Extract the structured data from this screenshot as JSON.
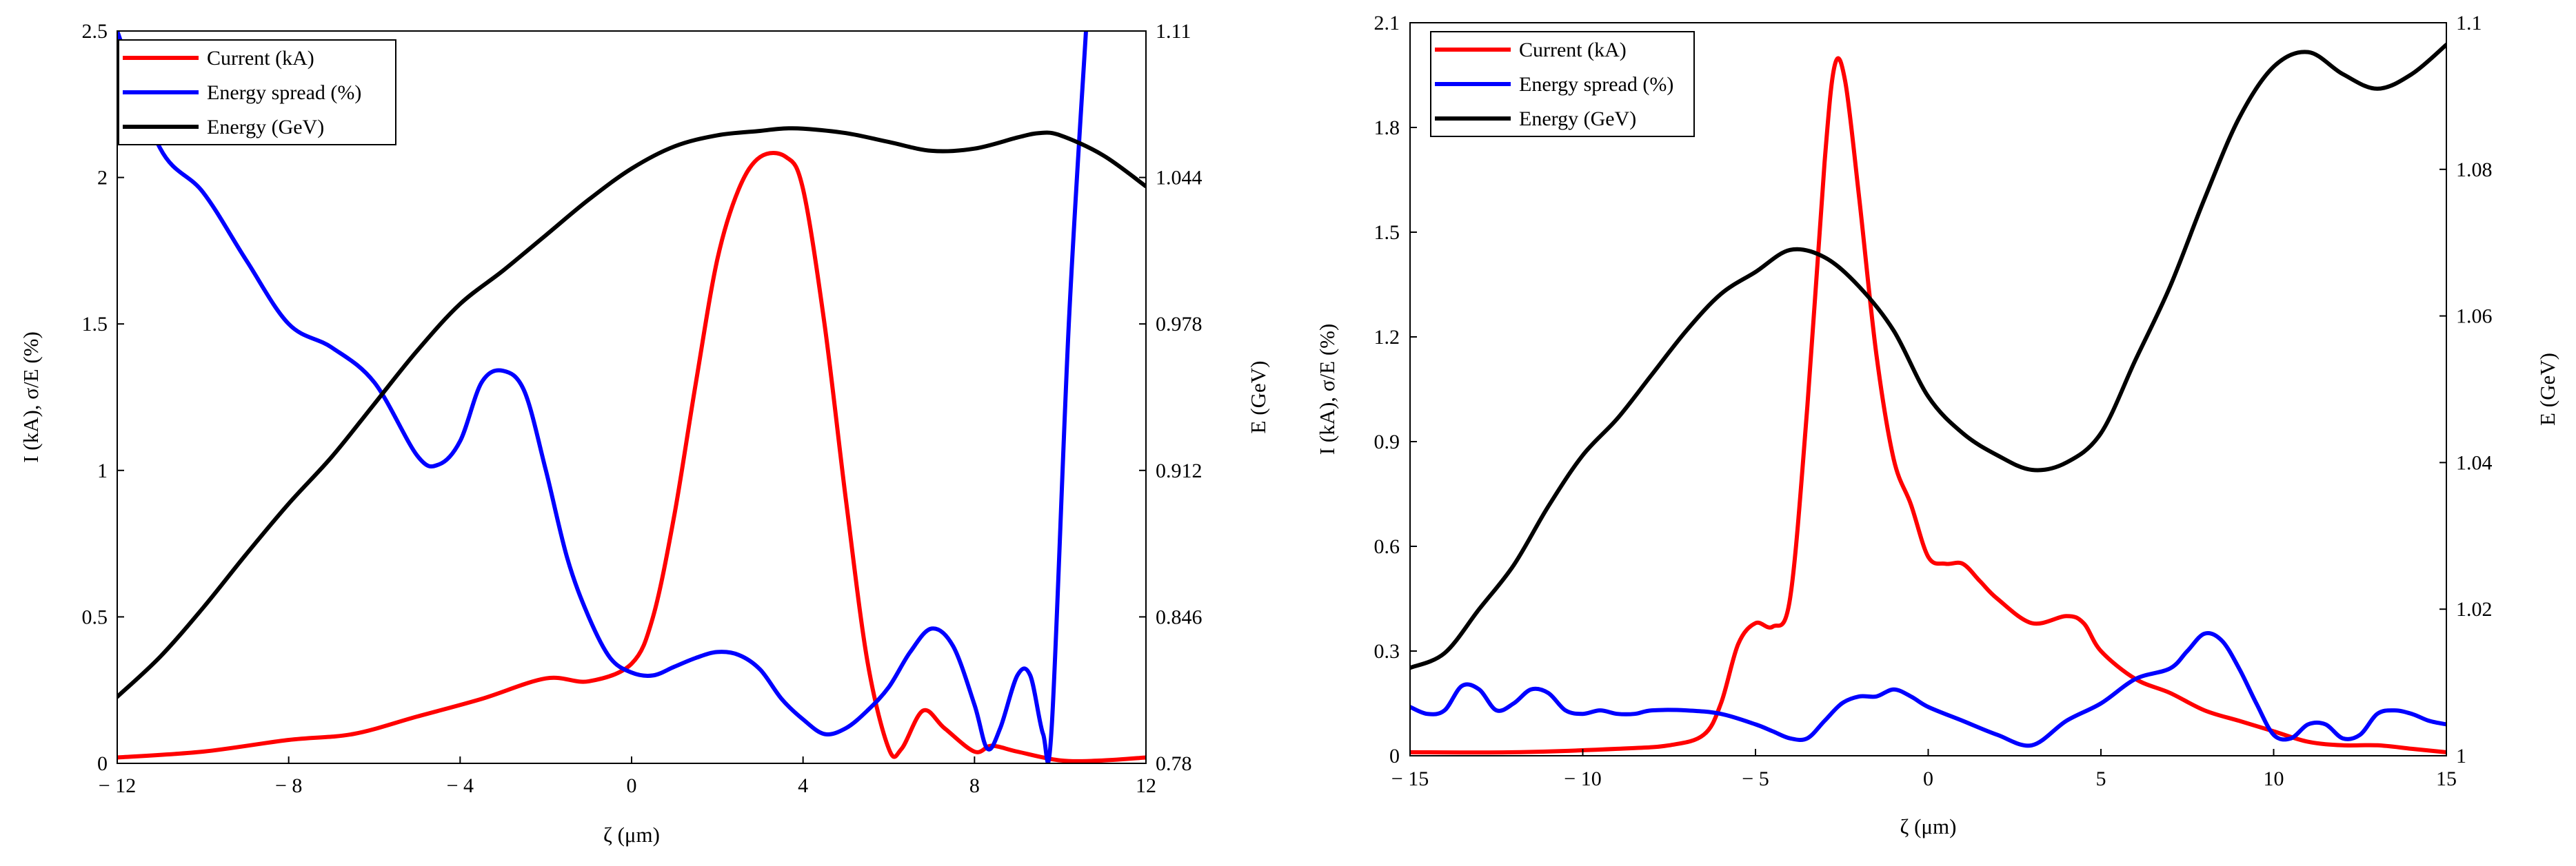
{
  "chart_data": [
    {
      "type": "line",
      "x_label": "ζ (μm)",
      "y_label": "I (kA), σ/E (%)",
      "y2_label": "E (GeV)",
      "xlim": [
        -12,
        12
      ],
      "ylim": [
        0,
        2.5
      ],
      "y2lim": [
        0.78,
        1.11
      ],
      "x_ticks": [
        "-12",
        "-8",
        "-4",
        "0",
        "4",
        "8",
        "12"
      ],
      "y_ticks": [
        "0",
        "0.5",
        "1",
        "1.5",
        "2",
        "2.5"
      ],
      "y2_ticks": [
        "0.78",
        "0.846",
        "0.912",
        "0.978",
        "1.044",
        "1.11"
      ],
      "legend": [
        {
          "name": "Current (kA)",
          "color": "#ff0000"
        },
        {
          "name": "Energy spread (%)",
          "color": "#0000ff"
        },
        {
          "name": "Energy (GeV)",
          "color": "#000000"
        }
      ],
      "series": [
        {
          "name": "Current (kA)",
          "color": "#ff0000",
          "axis": "left",
          "x": [
            -12,
            -10,
            -8,
            -6.5,
            -5,
            -3.5,
            -2,
            -1,
            0,
            0.5,
            1,
            1.5,
            2,
            2.5,
            3,
            3.6,
            4,
            4.5,
            5,
            5.5,
            6,
            6.3,
            6.8,
            7.3,
            8,
            8.4,
            9,
            10,
            11,
            12
          ],
          "y": [
            0.02,
            0.04,
            0.08,
            0.1,
            0.16,
            0.22,
            0.29,
            0.28,
            0.34,
            0.5,
            0.85,
            1.3,
            1.72,
            1.96,
            2.07,
            2.07,
            1.96,
            1.5,
            0.9,
            0.35,
            0.05,
            0.05,
            0.18,
            0.12,
            0.04,
            0.06,
            0.04,
            0.01,
            0.01,
            0.02
          ]
        },
        {
          "name": "Energy spread (%)",
          "color": "#0000ff",
          "axis": "left",
          "x": [
            -12,
            -11,
            -10,
            -9,
            -8,
            -7,
            -6,
            -5,
            -4.5,
            -4,
            -3.5,
            -3,
            -2.5,
            -2,
            -1.5,
            -1,
            -0.5,
            0,
            0.5,
            1,
            1.5,
            2,
            2.5,
            3,
            3.5,
            4,
            4.5,
            5,
            5.5,
            6,
            6.5,
            7,
            7.5,
            8,
            8.3,
            8.6,
            9,
            9.3,
            9.6,
            9.8,
            10.2,
            10.6
          ],
          "y": [
            2.5,
            2.1,
            1.95,
            1.72,
            1.5,
            1.42,
            1.3,
            1.05,
            1.02,
            1.1,
            1.3,
            1.34,
            1.27,
            1.0,
            0.7,
            0.5,
            0.36,
            0.31,
            0.3,
            0.33,
            0.36,
            0.38,
            0.37,
            0.32,
            0.22,
            0.15,
            0.1,
            0.12,
            0.18,
            0.26,
            0.38,
            0.46,
            0.4,
            0.2,
            0.05,
            0.12,
            0.3,
            0.3,
            0.1,
            0.12,
            1.5,
            2.5
          ]
        },
        {
          "name": "Energy (GeV)",
          "color": "#000000",
          "axis": "right",
          "x": [
            -12,
            -11,
            -10,
            -9,
            -8,
            -7,
            -6,
            -5,
            -4,
            -3,
            -2,
            -1,
            0,
            1,
            2,
            3,
            3.5,
            4,
            5,
            6,
            7,
            8,
            9,
            9.5,
            10,
            11,
            12
          ],
          "y": [
            0.81,
            0.828,
            0.85,
            0.874,
            0.897,
            0.918,
            0.942,
            0.966,
            0.987,
            1.002,
            1.018,
            1.034,
            1.048,
            1.058,
            1.063,
            1.065,
            1.066,
            1.066,
            1.064,
            1.06,
            1.056,
            1.057,
            1.062,
            1.064,
            1.063,
            1.054,
            1.04
          ]
        }
      ]
    },
    {
      "type": "line",
      "x_label": "ζ (μm)",
      "y_label": "I (kA), σ/E (%)",
      "y2_label": "E (GeV)",
      "xlim": [
        -15,
        15
      ],
      "ylim": [
        0,
        2.1
      ],
      "y2lim": [
        1,
        1.1
      ],
      "x_ticks": [
        "-15",
        "-10",
        "-5",
        "0",
        "5",
        "10",
        "15"
      ],
      "y_ticks": [
        "0",
        "0.3",
        "0.6",
        "0.9",
        "1.2",
        "1.5",
        "1.8",
        "2.1"
      ],
      "y2_ticks": [
        "1",
        "1.02",
        "1.04",
        "1.06",
        "1.08",
        "1.1"
      ],
      "legend": [
        {
          "name": "Current (kA)",
          "color": "#ff0000"
        },
        {
          "name": "Energy spread (%)",
          "color": "#0000ff"
        },
        {
          "name": "Energy (GeV)",
          "color": "#000000"
        }
      ],
      "series": [
        {
          "name": "Current (kA)",
          "color": "#ff0000",
          "axis": "left",
          "x": [
            -15,
            -12,
            -9,
            -7.5,
            -6.5,
            -6,
            -5.5,
            -5,
            -4.5,
            -4,
            -3.5,
            -3,
            -2.7,
            -2.4,
            -2,
            -1.5,
            -1,
            -0.5,
            0,
            0.5,
            1,
            1.5,
            2,
            3,
            4,
            4.5,
            5,
            6,
            7,
            8,
            9,
            10,
            11,
            12,
            13,
            14,
            15
          ],
          "y": [
            0.01,
            0.01,
            0.02,
            0.03,
            0.06,
            0.15,
            0.32,
            0.38,
            0.37,
            0.45,
            1.0,
            1.7,
            1.98,
            1.93,
            1.6,
            1.15,
            0.85,
            0.72,
            0.57,
            0.55,
            0.55,
            0.5,
            0.45,
            0.38,
            0.4,
            0.38,
            0.3,
            0.22,
            0.18,
            0.13,
            0.1,
            0.07,
            0.04,
            0.03,
            0.03,
            0.02,
            0.01
          ]
        },
        {
          "name": "Energy spread (%)",
          "color": "#0000ff",
          "axis": "left",
          "x": [
            -15,
            -14.5,
            -14,
            -13.5,
            -13,
            -12.5,
            -12,
            -11.5,
            -11,
            -10.5,
            -10,
            -9.5,
            -9,
            -8.5,
            -8,
            -7,
            -6,
            -5,
            -4.5,
            -4,
            -3.5,
            -3,
            -2.5,
            -2,
            -1.5,
            -1,
            -0.5,
            0,
            1,
            2,
            3,
            4,
            5,
            6,
            7,
            7.5,
            8,
            8.5,
            9,
            9.5,
            10,
            10.5,
            11,
            11.5,
            12,
            12.5,
            13,
            13.5,
            14,
            14.5,
            15
          ],
          "y": [
            0.14,
            0.12,
            0.13,
            0.2,
            0.19,
            0.13,
            0.15,
            0.19,
            0.18,
            0.13,
            0.12,
            0.13,
            0.12,
            0.12,
            0.13,
            0.13,
            0.12,
            0.09,
            0.07,
            0.05,
            0.05,
            0.1,
            0.15,
            0.17,
            0.17,
            0.19,
            0.17,
            0.14,
            0.1,
            0.06,
            0.03,
            0.1,
            0.15,
            0.22,
            0.25,
            0.3,
            0.35,
            0.33,
            0.25,
            0.15,
            0.06,
            0.05,
            0.09,
            0.09,
            0.05,
            0.06,
            0.12,
            0.13,
            0.12,
            0.1,
            0.09
          ]
        },
        {
          "name": "Energy (GeV)",
          "color": "#000000",
          "axis": "right",
          "x": [
            -15,
            -14,
            -13,
            -12,
            -11,
            -10,
            -9,
            -8,
            -7,
            -6,
            -5,
            -4,
            -3,
            -2,
            -1,
            0,
            1,
            2,
            3,
            4,
            5,
            6,
            7,
            8,
            9,
            10,
            11,
            12,
            13,
            14,
            15
          ],
          "y": [
            1.012,
            1.014,
            1.02,
            1.026,
            1.034,
            1.041,
            1.046,
            1.052,
            1.058,
            1.063,
            1.066,
            1.069,
            1.068,
            1.064,
            1.058,
            1.049,
            1.044,
            1.041,
            1.039,
            1.04,
            1.044,
            1.054,
            1.064,
            1.076,
            1.087,
            1.094,
            1.096,
            1.093,
            1.091,
            1.093,
            1.097
          ]
        }
      ]
    }
  ]
}
